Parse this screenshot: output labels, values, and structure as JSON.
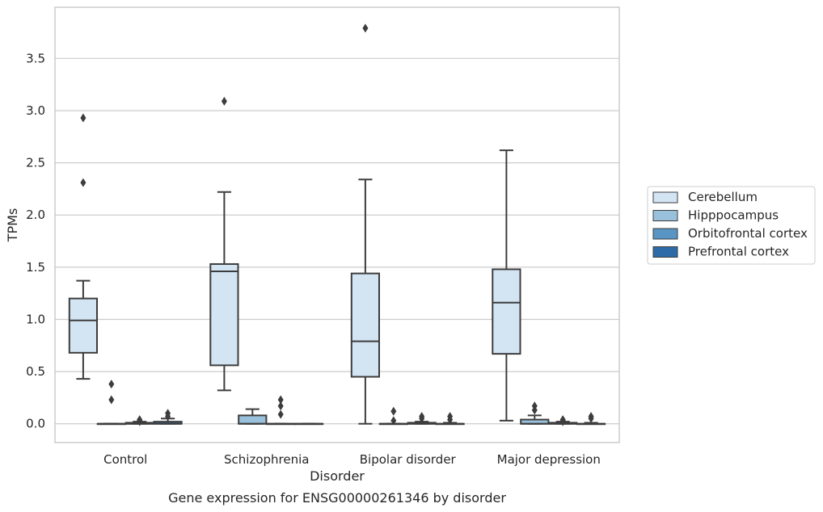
{
  "chart_data": {
    "type": "box",
    "title": "Gene expression for ENSG00000261346 by disorder",
    "xlabel": "Disorder",
    "ylabel": "TPMs",
    "ylim": [
      -0.18,
      3.99
    ],
    "yticks": [
      0.0,
      0.5,
      1.0,
      1.5,
      2.0,
      2.5,
      3.0,
      3.5
    ],
    "ytick_labels": [
      "0.0",
      "0.5",
      "1.0",
      "1.5",
      "2.0",
      "2.5",
      "3.0",
      "3.5"
    ],
    "categories": [
      "Control",
      "Schizophrenia",
      "Bipolar disorder",
      "Major depression"
    ],
    "grid": "horizontal",
    "legend_position": "right",
    "series": [
      {
        "name": "Cerebellum",
        "color": "#d3e4f3",
        "boxes": [
          {
            "whislo": 0.43,
            "q1": 0.68,
            "med": 0.99,
            "q3": 1.2,
            "whishi": 1.37,
            "fliers": [
              2.31,
              2.93
            ]
          },
          {
            "whislo": 0.32,
            "q1": 0.56,
            "med": 1.46,
            "q3": 1.53,
            "whishi": 2.22,
            "fliers": [
              3.09
            ]
          },
          {
            "whislo": 0.0,
            "q1": 0.45,
            "med": 0.79,
            "q3": 1.44,
            "whishi": 2.34,
            "fliers": [
              3.79
            ]
          },
          {
            "whislo": 0.03,
            "q1": 0.67,
            "med": 1.16,
            "q3": 1.48,
            "whishi": 2.62,
            "fliers": []
          }
        ]
      },
      {
        "name": "Hipppocampus",
        "color": "#9ac1db",
        "boxes": [
          {
            "whislo": 0.0,
            "q1": 0.0,
            "med": 0.0,
            "q3": 0.0,
            "whishi": 0.0,
            "fliers": [
              0.38,
              0.23
            ]
          },
          {
            "whislo": 0.0,
            "q1": 0.0,
            "med": 0.0,
            "q3": 0.08,
            "whishi": 0.14,
            "fliers": []
          },
          {
            "whislo": 0.0,
            "q1": 0.0,
            "med": 0.0,
            "q3": 0.0,
            "whishi": 0.0,
            "fliers": [
              0.12,
              0.03
            ]
          },
          {
            "whislo": 0.0,
            "q1": 0.0,
            "med": 0.0,
            "q3": 0.04,
            "whishi": 0.08,
            "fliers": [
              0.17,
              0.13
            ]
          }
        ]
      },
      {
        "name": "Orbitofrontal cortex",
        "color": "#5895c4",
        "boxes": [
          {
            "whislo": 0.0,
            "q1": 0.0,
            "med": 0.0,
            "q3": 0.01,
            "whishi": 0.02,
            "fliers": [
              0.04,
              0.03,
              0.02
            ]
          },
          {
            "whislo": 0.0,
            "q1": 0.0,
            "med": 0.0,
            "q3": 0.0,
            "whishi": 0.0,
            "fliers": [
              0.23,
              0.17,
              0.09
            ]
          },
          {
            "whislo": 0.0,
            "q1": 0.0,
            "med": 0.0,
            "q3": 0.01,
            "whishi": 0.02,
            "fliers": [
              0.07,
              0.05
            ]
          },
          {
            "whislo": 0.0,
            "q1": 0.0,
            "med": 0.0,
            "q3": 0.01,
            "whishi": 0.02,
            "fliers": [
              0.04,
              0.03,
              0.02
            ]
          }
        ]
      },
      {
        "name": "Prefrontal cortex",
        "color": "#2c6aa8",
        "boxes": [
          {
            "whislo": 0.0,
            "q1": 0.0,
            "med": 0.0,
            "q3": 0.02,
            "whishi": 0.05,
            "fliers": [
              0.1,
              0.07
            ]
          },
          {
            "whislo": 0.0,
            "q1": 0.0,
            "med": 0.0,
            "q3": 0.0,
            "whishi": 0.0,
            "fliers": []
          },
          {
            "whislo": 0.0,
            "q1": 0.0,
            "med": 0.0,
            "q3": 0.0,
            "whishi": 0.01,
            "fliers": [
              0.07,
              0.04
            ]
          },
          {
            "whislo": 0.0,
            "q1": 0.0,
            "med": 0.0,
            "q3": 0.0,
            "whishi": 0.01,
            "fliers": [
              0.07,
              0.05
            ]
          }
        ]
      }
    ],
    "colors": {
      "axes_edge": "#cccccc",
      "grid": "#cccccc",
      "box_line": "#3d3d3d",
      "text": "#262626"
    }
  }
}
